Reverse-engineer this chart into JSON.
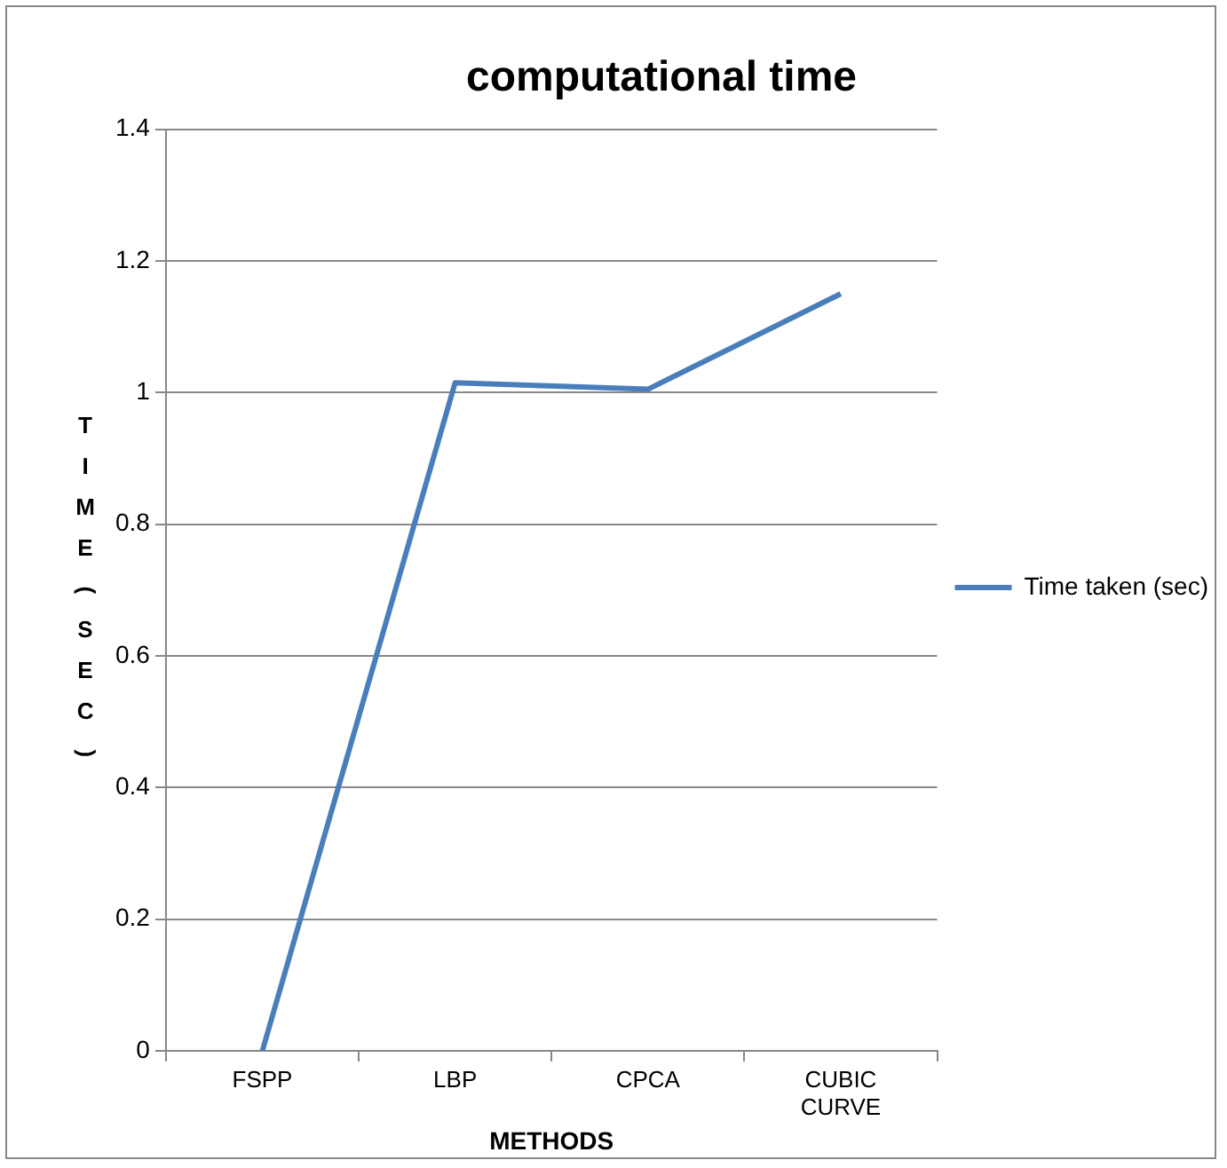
{
  "chart_data": {
    "type": "line",
    "title": "computational time",
    "xlabel": "METHODS",
    "ylabel": "TIME (SEC)",
    "categories": [
      "FSPP",
      "LBP",
      "CPCA",
      "CUBIC CURVE"
    ],
    "series": [
      {
        "name": "Time taken (sec)",
        "color": "#4a7ebb",
        "values": [
          0,
          1.015,
          1.005,
          1.15
        ]
      }
    ],
    "ylim": [
      0,
      1.4
    ],
    "yticks": [
      0,
      0.2,
      0.4,
      0.6,
      0.8,
      1,
      1.2,
      1.4
    ],
    "grid": "y",
    "legend": "right",
    "marker": "none",
    "line_style": "solid"
  }
}
